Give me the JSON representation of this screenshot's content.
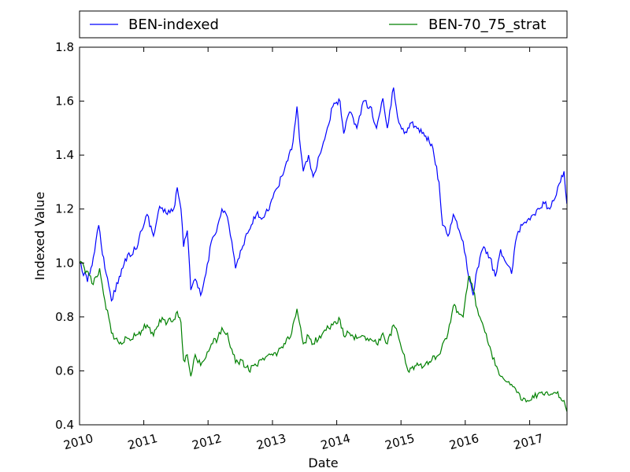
{
  "chart_data": {
    "type": "line",
    "title": "",
    "xlabel": "Date",
    "ylabel": "Indexed Value",
    "xlim": [
      "2010-01-01",
      "2017-08-01"
    ],
    "ylim": [
      0.4,
      1.8
    ],
    "x_ticks": [
      "2010",
      "2011",
      "2012",
      "2013",
      "2014",
      "2015",
      "2016",
      "2017"
    ],
    "y_ticks": [
      "0.4",
      "0.6",
      "0.8",
      "1.0",
      "1.2",
      "1.4",
      "1.6",
      "1.8"
    ],
    "grid": false,
    "legend": {
      "placement": "above-top",
      "columns": 2
    },
    "series": [
      {
        "name": "BEN-indexed",
        "color": "#0000ff",
        "points": [
          [
            "2010-01-01",
            1.0
          ],
          [
            "2010-02-15",
            0.93
          ],
          [
            "2010-03-20",
            1.02
          ],
          [
            "2010-04-20",
            1.14
          ],
          [
            "2010-05-25",
            0.98
          ],
          [
            "2010-07-01",
            0.86
          ],
          [
            "2010-08-15",
            0.95
          ],
          [
            "2010-10-01",
            1.03
          ],
          [
            "2010-11-15",
            1.05
          ],
          [
            "2010-12-20",
            1.12
          ],
          [
            "2011-01-20",
            1.18
          ],
          [
            "2011-02-25",
            1.1
          ],
          [
            "2011-04-01",
            1.21
          ],
          [
            "2011-05-15",
            1.18
          ],
          [
            "2011-06-20",
            1.2
          ],
          [
            "2011-07-10",
            1.28
          ],
          [
            "2011-07-31",
            1.2
          ],
          [
            "2011-08-15",
            1.06
          ],
          [
            "2011-09-05",
            1.12
          ],
          [
            "2011-09-25",
            0.9
          ],
          [
            "2011-10-20",
            0.94
          ],
          [
            "2011-11-20",
            0.88
          ],
          [
            "2011-12-20",
            0.96
          ],
          [
            "2012-01-20",
            1.08
          ],
          [
            "2012-02-25",
            1.14
          ],
          [
            "2012-03-20",
            1.2
          ],
          [
            "2012-04-20",
            1.17
          ],
          [
            "2012-05-15",
            1.08
          ],
          [
            "2012-06-05",
            0.98
          ],
          [
            "2012-07-10",
            1.05
          ],
          [
            "2012-08-20",
            1.12
          ],
          [
            "2012-10-01",
            1.18
          ],
          [
            "2012-11-15",
            1.17
          ],
          [
            "2012-12-20",
            1.22
          ],
          [
            "2013-02-01",
            1.28
          ],
          [
            "2013-03-15",
            1.36
          ],
          [
            "2013-04-20",
            1.42
          ],
          [
            "2013-05-20",
            1.58
          ],
          [
            "2013-06-10",
            1.42
          ],
          [
            "2013-06-25",
            1.34
          ],
          [
            "2013-07-25",
            1.4
          ],
          [
            "2013-08-20",
            1.32
          ],
          [
            "2013-09-25",
            1.4
          ],
          [
            "2013-11-01",
            1.48
          ],
          [
            "2013-12-10",
            1.58
          ],
          [
            "2014-01-20",
            1.6
          ],
          [
            "2014-02-10",
            1.48
          ],
          [
            "2014-03-15",
            1.56
          ],
          [
            "2014-04-25",
            1.5
          ],
          [
            "2014-06-01",
            1.6
          ],
          [
            "2014-07-10",
            1.58
          ],
          [
            "2014-08-15",
            1.5
          ],
          [
            "2014-09-20",
            1.61
          ],
          [
            "2014-10-15",
            1.5
          ],
          [
            "2014-11-20",
            1.65
          ],
          [
            "2014-12-20",
            1.52
          ],
          [
            "2015-01-20",
            1.48
          ],
          [
            "2015-03-01",
            1.52
          ],
          [
            "2015-04-10",
            1.5
          ],
          [
            "2015-05-15",
            1.47
          ],
          [
            "2015-06-25",
            1.44
          ],
          [
            "2015-08-05",
            1.3
          ],
          [
            "2015-08-25",
            1.14
          ],
          [
            "2015-09-25",
            1.1
          ],
          [
            "2015-10-25",
            1.18
          ],
          [
            "2015-11-20",
            1.13
          ],
          [
            "2015-12-20",
            1.08
          ],
          [
            "2016-01-20",
            0.95
          ],
          [
            "2016-02-15",
            0.88
          ],
          [
            "2016-03-10",
            0.98
          ],
          [
            "2016-04-15",
            1.06
          ],
          [
            "2016-05-20",
            1.02
          ],
          [
            "2016-06-20",
            0.95
          ],
          [
            "2016-07-20",
            1.05
          ],
          [
            "2016-08-20",
            1.0
          ],
          [
            "2016-09-20",
            0.96
          ],
          [
            "2016-10-20",
            1.1
          ],
          [
            "2016-11-20",
            1.14
          ],
          [
            "2016-12-20",
            1.16
          ],
          [
            "2017-01-25",
            1.18
          ],
          [
            "2017-02-25",
            1.2
          ],
          [
            "2017-03-25",
            1.22
          ],
          [
            "2017-04-25",
            1.2
          ],
          [
            "2017-05-25",
            1.24
          ],
          [
            "2017-06-25",
            1.3
          ],
          [
            "2017-07-15",
            1.34
          ],
          [
            "2017-07-31",
            1.22
          ]
        ]
      },
      {
        "name": "BEN-70_75_strat",
        "color": "#008000",
        "points": [
          [
            "2010-01-01",
            1.0
          ],
          [
            "2010-02-10",
            0.97
          ],
          [
            "2010-03-20",
            0.92
          ],
          [
            "2010-04-25",
            0.98
          ],
          [
            "2010-05-25",
            0.86
          ],
          [
            "2010-07-01",
            0.74
          ],
          [
            "2010-08-15",
            0.7
          ],
          [
            "2010-10-01",
            0.72
          ],
          [
            "2010-11-15",
            0.73
          ],
          [
            "2010-12-20",
            0.75
          ],
          [
            "2011-01-20",
            0.77
          ],
          [
            "2011-02-25",
            0.73
          ],
          [
            "2011-04-01",
            0.79
          ],
          [
            "2011-05-15",
            0.78
          ],
          [
            "2011-06-20",
            0.79
          ],
          [
            "2011-07-10",
            0.82
          ],
          [
            "2011-07-31",
            0.78
          ],
          [
            "2011-08-15",
            0.64
          ],
          [
            "2011-09-05",
            0.66
          ],
          [
            "2011-09-25",
            0.58
          ],
          [
            "2011-10-20",
            0.66
          ],
          [
            "2011-11-20",
            0.62
          ],
          [
            "2011-12-20",
            0.65
          ],
          [
            "2012-01-20",
            0.7
          ],
          [
            "2012-02-25",
            0.72
          ],
          [
            "2012-03-20",
            0.76
          ],
          [
            "2012-04-20",
            0.74
          ],
          [
            "2012-05-15",
            0.68
          ],
          [
            "2012-06-05",
            0.63
          ],
          [
            "2012-07-10",
            0.64
          ],
          [
            "2012-08-20",
            0.6
          ],
          [
            "2012-10-01",
            0.62
          ],
          [
            "2012-11-15",
            0.64
          ],
          [
            "2012-12-20",
            0.66
          ],
          [
            "2013-02-01",
            0.67
          ],
          [
            "2013-03-15",
            0.7
          ],
          [
            "2013-04-20",
            0.74
          ],
          [
            "2013-05-20",
            0.83
          ],
          [
            "2013-06-10",
            0.76
          ],
          [
            "2013-06-25",
            0.7
          ],
          [
            "2013-07-25",
            0.73
          ],
          [
            "2013-08-20",
            0.7
          ],
          [
            "2013-09-25",
            0.73
          ],
          [
            "2013-11-01",
            0.75
          ],
          [
            "2013-12-10",
            0.77
          ],
          [
            "2014-01-20",
            0.79
          ],
          [
            "2014-02-10",
            0.73
          ],
          [
            "2014-03-15",
            0.74
          ],
          [
            "2014-04-25",
            0.72
          ],
          [
            "2014-06-01",
            0.73
          ],
          [
            "2014-07-10",
            0.72
          ],
          [
            "2014-08-15",
            0.7
          ],
          [
            "2014-09-20",
            0.74
          ],
          [
            "2014-10-15",
            0.7
          ],
          [
            "2014-11-20",
            0.77
          ],
          [
            "2014-12-20",
            0.72
          ],
          [
            "2015-01-20",
            0.66
          ],
          [
            "2015-02-10",
            0.6
          ],
          [
            "2015-03-01",
            0.61
          ],
          [
            "2015-04-10",
            0.62
          ],
          [
            "2015-05-15",
            0.62
          ],
          [
            "2015-06-25",
            0.64
          ],
          [
            "2015-08-05",
            0.66
          ],
          [
            "2015-08-25",
            0.7
          ],
          [
            "2015-09-25",
            0.74
          ],
          [
            "2015-10-25",
            0.84
          ],
          [
            "2015-11-20",
            0.82
          ],
          [
            "2015-12-20",
            0.8
          ],
          [
            "2016-01-20",
            0.95
          ],
          [
            "2016-02-15",
            0.9
          ],
          [
            "2016-03-10",
            0.83
          ],
          [
            "2016-04-15",
            0.76
          ],
          [
            "2016-05-20",
            0.69
          ],
          [
            "2016-06-20",
            0.62
          ],
          [
            "2016-07-20",
            0.58
          ],
          [
            "2016-08-20",
            0.56
          ],
          [
            "2016-09-20",
            0.55
          ],
          [
            "2016-10-20",
            0.52
          ],
          [
            "2016-11-20",
            0.49
          ],
          [
            "2016-12-20",
            0.49
          ],
          [
            "2017-01-25",
            0.5
          ],
          [
            "2017-02-25",
            0.52
          ],
          [
            "2017-03-25",
            0.51
          ],
          [
            "2017-04-25",
            0.51
          ],
          [
            "2017-05-25",
            0.52
          ],
          [
            "2017-06-25",
            0.5
          ],
          [
            "2017-07-15",
            0.49
          ],
          [
            "2017-07-31",
            0.45
          ]
        ]
      }
    ]
  }
}
